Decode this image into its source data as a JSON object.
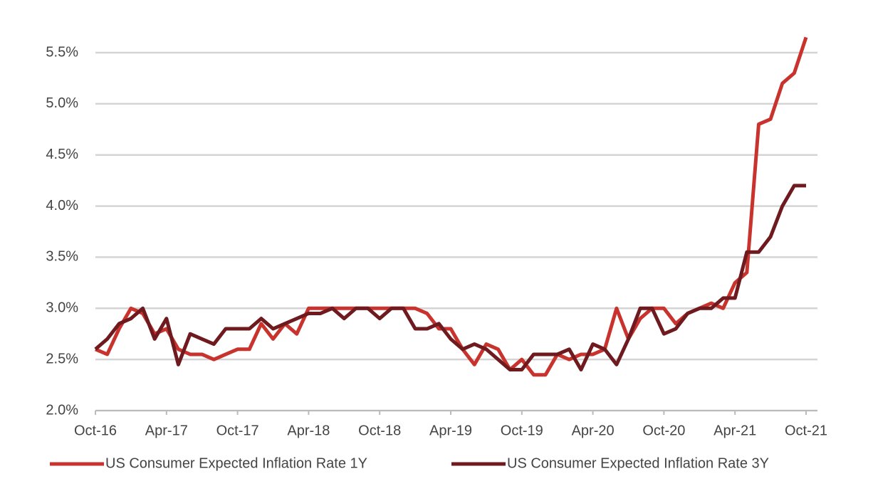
{
  "chart_data": {
    "type": "line",
    "categories": [
      "Oct-16",
      null,
      null,
      null,
      null,
      null,
      "Apr-17",
      null,
      null,
      null,
      null,
      null,
      "Oct-17",
      null,
      null,
      null,
      null,
      null,
      "Apr-18",
      null,
      null,
      null,
      null,
      null,
      "Oct-18",
      null,
      null,
      null,
      null,
      null,
      "Apr-19",
      null,
      null,
      null,
      null,
      null,
      "Oct-19",
      null,
      null,
      null,
      null,
      null,
      "Apr-20",
      null,
      null,
      null,
      null,
      null,
      "Oct-20",
      null,
      null,
      null,
      null,
      null,
      "Apr-21",
      null,
      null,
      null,
      null,
      null,
      "Oct-21"
    ],
    "series": [
      {
        "name": "US Consumer Expected Inflation Rate 1Y",
        "color": "#c8332e",
        "values": [
          2.6,
          2.55,
          2.8,
          3.0,
          2.95,
          2.75,
          2.8,
          2.6,
          2.55,
          2.55,
          2.5,
          2.55,
          2.6,
          2.6,
          2.85,
          2.7,
          2.85,
          2.75,
          3.0,
          3.0,
          3.0,
          3.0,
          3.0,
          3.0,
          3.0,
          3.0,
          3.0,
          3.0,
          2.95,
          2.8,
          2.8,
          2.6,
          2.45,
          2.65,
          2.6,
          2.4,
          2.5,
          2.35,
          2.35,
          2.55,
          2.5,
          2.55,
          2.55,
          2.6,
          3.0,
          2.7,
          2.9,
          3.0,
          3.0,
          2.85,
          2.95,
          3.0,
          3.05,
          3.0,
          3.25,
          3.35,
          4.8,
          4.85,
          5.2,
          5.3,
          5.65
        ]
      },
      {
        "name": "US Consumer Expected Inflation Rate 3Y",
        "color": "#6e1a1f",
        "values": [
          2.6,
          2.7,
          2.85,
          2.9,
          3.0,
          2.7,
          2.9,
          2.45,
          2.75,
          2.7,
          2.65,
          2.8,
          2.8,
          2.8,
          2.9,
          2.8,
          2.85,
          2.9,
          2.95,
          2.95,
          3.0,
          2.9,
          3.0,
          3.0,
          2.9,
          3.0,
          3.0,
          2.8,
          2.8,
          2.85,
          2.7,
          2.6,
          2.65,
          2.6,
          2.5,
          2.4,
          2.4,
          2.55,
          2.55,
          2.55,
          2.6,
          2.4,
          2.65,
          2.6,
          2.45,
          2.7,
          3.0,
          3.0,
          2.75,
          2.8,
          2.95,
          3.0,
          3.0,
          3.1,
          3.1,
          3.55,
          3.55,
          3.7,
          4.0,
          4.2,
          4.2
        ]
      }
    ],
    "ylim": [
      2.0,
      5.5
    ],
    "yticks": [
      {
        "value": 2.0,
        "label": "2.0%"
      },
      {
        "value": 2.5,
        "label": "2.5%"
      },
      {
        "value": 3.0,
        "label": "3.0%"
      },
      {
        "value": 3.5,
        "label": "3.5%"
      },
      {
        "value": 4.0,
        "label": "4.0%"
      },
      {
        "value": 4.5,
        "label": "4.5%"
      },
      {
        "value": 5.0,
        "label": "5.0%"
      },
      {
        "value": 5.5,
        "label": "5.5%"
      }
    ],
    "grid": true,
    "legend": "bottom"
  }
}
